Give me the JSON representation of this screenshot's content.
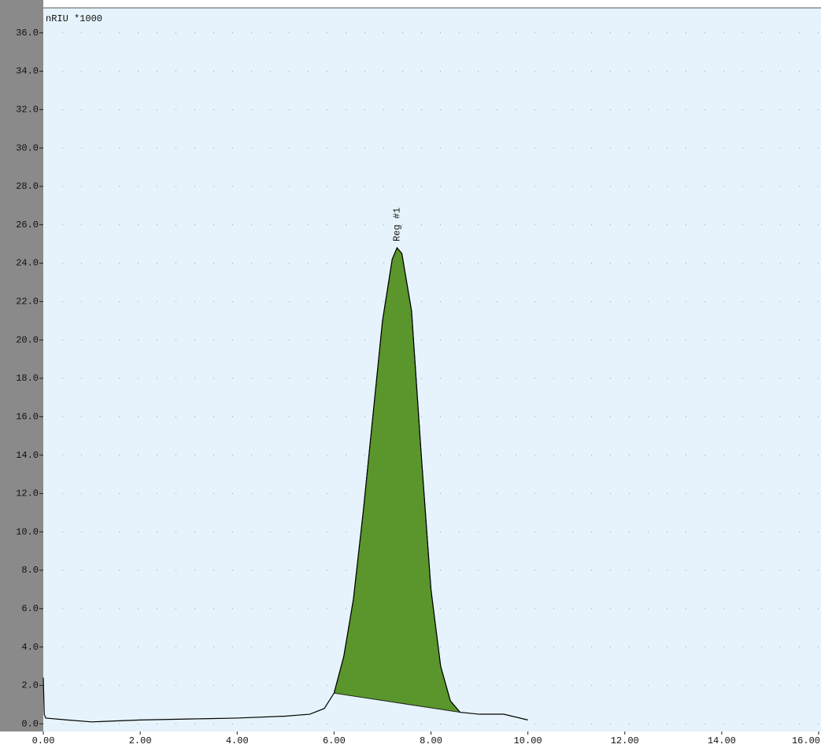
{
  "chart_data": {
    "type": "chromatogram",
    "y_label": "nRIU *1000",
    "x": [
      0.0,
      0.02,
      0.05,
      0.5,
      1.0,
      2.0,
      3.0,
      4.0,
      5.0,
      5.5,
      5.8,
      6.0,
      6.2,
      6.4,
      6.6,
      6.8,
      7.0,
      7.2,
      7.3,
      7.4,
      7.6,
      7.8,
      8.0,
      8.2,
      8.4,
      8.6,
      9.0,
      9.5,
      10.0
    ],
    "values": [
      2.4,
      0.5,
      0.3,
      0.2,
      0.1,
      0.2,
      0.25,
      0.3,
      0.4,
      0.5,
      0.8,
      1.6,
      3.5,
      6.5,
      11,
      16,
      21,
      24.2,
      24.8,
      24.5,
      21.5,
      14,
      7,
      3,
      1.2,
      0.6,
      0.5,
      0.5,
      0.2
    ],
    "color": "#000000",
    "peak": {
      "label": "Reg #1",
      "x": 7.3,
      "y": 24.8,
      "range": [
        6.0,
        8.6
      ],
      "color": "#5a962c"
    },
    "xlim": [
      0,
      16
    ],
    "ylim": [
      -0.4,
      37.3
    ],
    "xticks": [
      {
        "value": 0,
        "label": "0.00"
      },
      {
        "value": 2,
        "label": "2.00"
      },
      {
        "value": 4,
        "label": "4.00"
      },
      {
        "value": 6,
        "label": "6.00"
      },
      {
        "value": 8,
        "label": "8.00"
      },
      {
        "value": 10,
        "label": "10.00"
      },
      {
        "value": 12,
        "label": "12.00"
      },
      {
        "value": 14,
        "label": "14.00"
      },
      {
        "value": 16,
        "label": "16.00"
      }
    ],
    "yticks": [
      {
        "value": 0,
        "label": "0.0"
      },
      {
        "value": 2,
        "label": "2.0"
      },
      {
        "value": 4,
        "label": "4.0"
      },
      {
        "value": 6,
        "label": "6.0"
      },
      {
        "value": 8,
        "label": "8.0"
      },
      {
        "value": 10,
        "label": "10.0"
      },
      {
        "value": 12,
        "label": "12.0"
      },
      {
        "value": 14,
        "label": "14.0"
      },
      {
        "value": 16,
        "label": "16.0"
      },
      {
        "value": 18,
        "label": "18.0"
      },
      {
        "value": 20,
        "label": "20.0"
      },
      {
        "value": 22,
        "label": "22.0"
      },
      {
        "value": 24,
        "label": "24.0"
      },
      {
        "value": 26,
        "label": "26.0"
      },
      {
        "value": 28,
        "label": "28.0"
      },
      {
        "value": 30,
        "label": "30.0"
      },
      {
        "value": 32,
        "label": "32.0"
      },
      {
        "value": 34,
        "label": "34.0"
      },
      {
        "value": 36,
        "label": "36.0"
      }
    ],
    "grid": true
  }
}
